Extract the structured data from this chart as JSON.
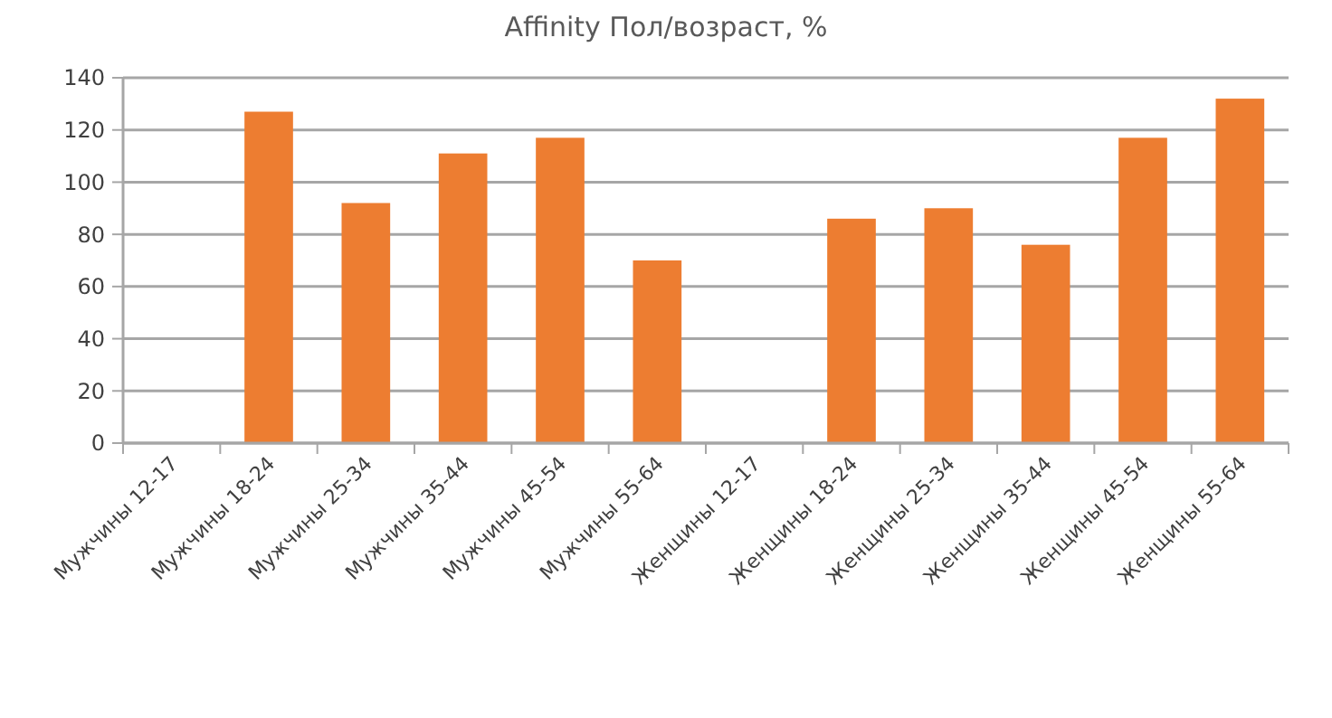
{
  "chart_data": {
    "type": "bar",
    "title": "Affinity Пол/возраст, %",
    "categories": [
      "Мужчины 12-17",
      "Мужчины 18-24",
      "Мужчины 25-34",
      "Мужчины 35-44",
      "Мужчины 45-54",
      "Мужчины 55-64",
      "Женщины 12-17",
      "Женщины 18-24",
      "Женщины 25-34",
      "Женщины 35-44",
      "Женщины 45-54",
      "Женщины 55-64"
    ],
    "values": [
      null,
      127,
      92,
      111,
      117,
      70,
      null,
      86,
      90,
      76,
      117,
      132
    ],
    "color": "#ed7d31",
    "ylim": [
      0,
      140
    ],
    "yticks": [
      0,
      20,
      40,
      60,
      80,
      100,
      120,
      140
    ],
    "grid": "y"
  }
}
